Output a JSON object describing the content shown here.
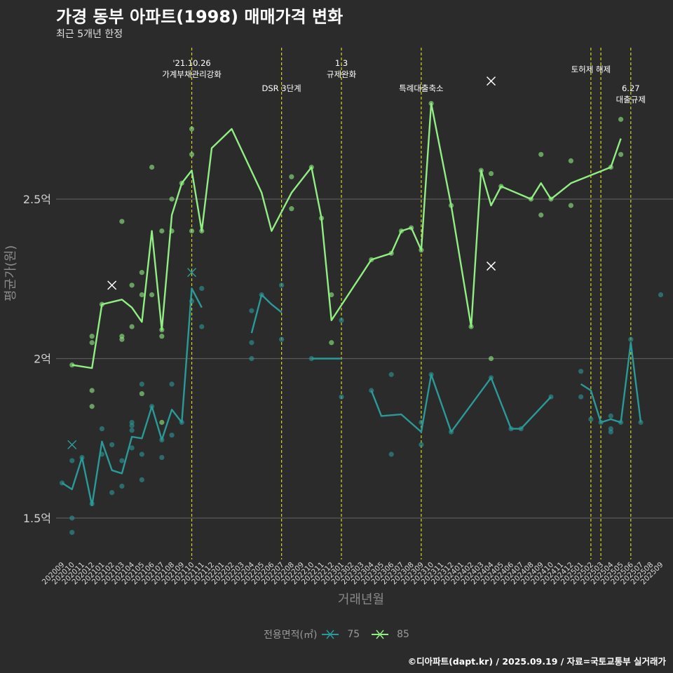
{
  "header": {
    "title": "가경 동부 아파트(1998) 매매가격 변화",
    "subtitle": "최근 5개년 한정"
  },
  "caption": "©디아파트(dapt.kr) / 2025.09.19 / 자료=국토교통부 실거래가",
  "legend": {
    "title": "전용면적(㎡)",
    "items": [
      "75",
      "85"
    ]
  },
  "colors": {
    "s75": "#2a9a98",
    "s85": "#90ee82",
    "event": "#d4d41e",
    "grid": "#5a5a5a",
    "bg": "#2b2b2b"
  },
  "chart_data": {
    "type": "line",
    "title": "가경 동부 아파트(1998) 매매가격 변화",
    "subtitle": "최근 5개년 한정",
    "xlabel": "거래년월",
    "ylabel": "평균가(원)",
    "ylim": [
      1.38,
      2.88
    ],
    "yticks": [
      {
        "value": 1.5,
        "label": "1.5억"
      },
      {
        "value": 2.0,
        "label": "2억"
      },
      {
        "value": 2.5,
        "label": "2.5억"
      }
    ],
    "months": [
      "202009",
      "202010",
      "202011",
      "202012",
      "202101",
      "202102",
      "202103",
      "202104",
      "202105",
      "202106",
      "202107",
      "202108",
      "202109",
      "202110",
      "202111",
      "202112",
      "202201",
      "202202",
      "202203",
      "202204",
      "202205",
      "202206",
      "202207",
      "202208",
      "202209",
      "202210",
      "202211",
      "202212",
      "202301",
      "202302",
      "202303",
      "202304",
      "202305",
      "202306",
      "202307",
      "202308",
      "202309",
      "202310",
      "202311",
      "202312",
      "202401",
      "202402",
      "202403",
      "202404",
      "202405",
      "202406",
      "202407",
      "202408",
      "202409",
      "202410",
      "202411",
      "202412",
      "202501",
      "202502",
      "202503",
      "202504",
      "202505",
      "202506",
      "202507",
      "202508",
      "202509"
    ],
    "series": [
      {
        "name": "75",
        "line_segments": [
          [
            [
              "202009",
              1.61
            ],
            [
              "202010",
              1.59
            ],
            [
              "202011",
              1.69
            ],
            [
              "202012",
              1.54
            ],
            [
              "202101",
              1.74
            ],
            [
              "202102",
              1.65
            ],
            [
              "202103",
              1.64
            ],
            [
              "202104",
              1.755
            ],
            [
              "202105",
              1.75
            ],
            [
              "202106",
              1.85
            ],
            [
              "202107",
              1.745
            ],
            [
              "202108",
              1.84
            ],
            [
              "202109",
              1.8
            ],
            [
              "202110",
              2.22
            ],
            [
              "202111",
              2.16
            ]
          ],
          [
            [
              "202204",
              2.08
            ],
            [
              "202205",
              2.2
            ],
            [
              "202206",
              2.17
            ],
            [
              "202207",
              2.145
            ]
          ],
          [
            [
              "202210",
              2.0
            ],
            [
              "202211",
              2.0
            ],
            [
              "202212",
              2.0
            ],
            [
              "202301",
              2.0
            ]
          ],
          [
            [
              "202304",
              1.9
            ],
            [
              "202305",
              1.82
            ],
            [
              "202307",
              1.825
            ],
            [
              "202309",
              1.77
            ],
            [
              "202310",
              1.95
            ],
            [
              "202312",
              1.77
            ],
            [
              "202404",
              1.94
            ],
            [
              "202406",
              1.78
            ],
            [
              "202407",
              1.78
            ],
            [
              "202410",
              1.88
            ]
          ],
          [
            [
              "202501",
              1.92
            ],
            [
              "202502",
              1.9
            ],
            [
              "202503",
              1.8
            ],
            [
              "202504",
              1.81
            ],
            [
              "202505",
              1.8
            ],
            [
              "202506",
              2.05
            ],
            [
              "202507",
              1.8
            ]
          ]
        ],
        "points": [
          [
            "202009",
            1.61
          ],
          [
            "202010",
            1.68
          ],
          [
            "202010",
            1.5
          ],
          [
            "202010",
            1.455
          ],
          [
            "202011",
            1.69
          ],
          [
            "202012",
            1.545
          ],
          [
            "202101",
            1.78
          ],
          [
            "202101",
            1.7
          ],
          [
            "202102",
            1.58
          ],
          [
            "202102",
            1.73
          ],
          [
            "202103",
            1.68
          ],
          [
            "202103",
            1.6
          ],
          [
            "202104",
            1.8
          ],
          [
            "202104",
            1.79
          ],
          [
            "202104",
            1.72
          ],
          [
            "202104",
            1.775
          ],
          [
            "202105",
            1.92
          ],
          [
            "202105",
            1.7
          ],
          [
            "202105",
            1.62
          ],
          [
            "202106",
            1.85
          ],
          [
            "202107",
            1.745
          ],
          [
            "202107",
            1.69
          ],
          [
            "202108",
            1.92
          ],
          [
            "202108",
            1.76
          ],
          [
            "202109",
            1.8
          ],
          [
            "202110",
            2.18
          ],
          [
            "202111",
            2.22
          ],
          [
            "202111",
            2.1
          ],
          [
            "202204",
            2.15
          ],
          [
            "202204",
            2.05
          ],
          [
            "202204",
            2.0
          ],
          [
            "202205",
            2.2
          ],
          [
            "202207",
            2.23
          ],
          [
            "202207",
            2.06
          ],
          [
            "202210",
            2.0
          ],
          [
            "202301",
            2.12
          ],
          [
            "202301",
            1.88
          ],
          [
            "202304",
            1.9
          ],
          [
            "202306",
            1.95
          ],
          [
            "202306",
            1.7
          ],
          [
            "202309",
            1.8
          ],
          [
            "202309",
            1.73
          ],
          [
            "202310",
            1.95
          ],
          [
            "202312",
            1.77
          ],
          [
            "202404",
            1.94
          ],
          [
            "202406",
            1.78
          ],
          [
            "202407",
            1.78
          ],
          [
            "202410",
            1.88
          ],
          [
            "202501",
            1.96
          ],
          [
            "202501",
            1.88
          ],
          [
            "202502",
            1.81
          ],
          [
            "202503",
            1.8
          ],
          [
            "202504",
            1.82
          ],
          [
            "202504",
            1.78
          ],
          [
            "202504",
            1.77
          ],
          [
            "202505",
            1.8
          ],
          [
            "202506",
            2.06
          ],
          [
            "202507",
            1.8
          ],
          [
            "202509",
            2.2
          ]
        ],
        "crosses": [
          [
            "202010",
            1.73
          ],
          [
            "202110",
            2.27
          ]
        ]
      },
      {
        "name": "85",
        "line_segments": [
          [
            [
              "202010",
              1.98
            ],
            [
              "202012",
              1.97
            ],
            [
              "202101",
              2.17
            ],
            [
              "202103",
              2.185
            ],
            [
              "202104",
              2.16
            ],
            [
              "202105",
              2.115
            ],
            [
              "202106",
              2.4
            ],
            [
              "202107",
              2.09
            ],
            [
              "202108",
              2.45
            ],
            [
              "202109",
              2.55
            ],
            [
              "202110",
              2.59
            ],
            [
              "202111",
              2.4
            ],
            [
              "202112",
              2.66
            ],
            [
              "202202",
              2.72
            ],
            [
              "202205",
              2.52
            ],
            [
              "202206",
              2.4
            ],
            [
              "202208",
              2.52
            ],
            [
              "202210",
              2.6
            ],
            [
              "202211",
              2.44
            ],
            [
              "202212",
              2.12
            ],
            [
              "202304",
              2.31
            ],
            [
              "202306",
              2.33
            ],
            [
              "202307",
              2.4
            ],
            [
              "202308",
              2.41
            ],
            [
              "202309",
              2.34
            ],
            [
              "202310",
              2.8
            ],
            [
              "202312",
              2.48
            ],
            [
              "202402",
              2.1
            ],
            [
              "202403",
              2.59
            ],
            [
              "202404",
              2.48
            ],
            [
              "202405",
              2.54
            ],
            [
              "202408",
              2.5
            ],
            [
              "202409",
              2.55
            ],
            [
              "202410",
              2.5
            ],
            [
              "202412",
              2.55
            ],
            [
              "202504",
              2.6
            ],
            [
              "202505",
              2.69
            ]
          ]
        ],
        "points": [
          [
            "202010",
            1.98
          ],
          [
            "202012",
            1.9
          ],
          [
            "202012",
            2.07
          ],
          [
            "202012",
            2.05
          ],
          [
            "202012",
            1.85
          ],
          [
            "202101",
            2.17
          ],
          [
            "202103",
            2.43
          ],
          [
            "202103",
            2.07
          ],
          [
            "202103",
            2.06
          ],
          [
            "202104",
            2.23
          ],
          [
            "202104",
            2.1
          ],
          [
            "202105",
            2.27
          ],
          [
            "202105",
            2.2
          ],
          [
            "202105",
            1.89
          ],
          [
            "202106",
            2.6
          ],
          [
            "202106",
            2.2
          ],
          [
            "202107",
            2.4
          ],
          [
            "202107",
            2.09
          ],
          [
            "202107",
            2.07
          ],
          [
            "202107",
            1.8
          ],
          [
            "202108",
            2.5
          ],
          [
            "202108",
            2.4
          ],
          [
            "202109",
            2.55
          ],
          [
            "202110",
            2.72
          ],
          [
            "202110",
            2.64
          ],
          [
            "202110",
            2.4
          ],
          [
            "202111",
            2.4
          ],
          [
            "202208",
            2.57
          ],
          [
            "202208",
            2.47
          ],
          [
            "202210",
            2.6
          ],
          [
            "202211",
            2.44
          ],
          [
            "202212",
            2.2
          ],
          [
            "202212",
            2.05
          ],
          [
            "202304",
            2.31
          ],
          [
            "202306",
            2.33
          ],
          [
            "202307",
            2.4
          ],
          [
            "202308",
            2.41
          ],
          [
            "202309",
            2.34
          ],
          [
            "202310",
            2.8
          ],
          [
            "202312",
            2.48
          ],
          [
            "202402",
            2.1
          ],
          [
            "202403",
            2.59
          ],
          [
            "202404",
            2.58
          ],
          [
            "202404",
            2.0
          ],
          [
            "202405",
            2.54
          ],
          [
            "202408",
            2.5
          ],
          [
            "202409",
            2.64
          ],
          [
            "202409",
            2.45
          ],
          [
            "202410",
            2.5
          ],
          [
            "202412",
            2.62
          ],
          [
            "202412",
            2.48
          ],
          [
            "202504",
            2.6
          ],
          [
            "202505",
            2.75
          ],
          [
            "202505",
            2.64
          ]
        ],
        "crosses": [
          [
            "202102",
            2.23
          ],
          [
            "202404",
            2.87
          ],
          [
            "202404",
            2.29
          ]
        ]
      }
    ],
    "events": [
      {
        "month": "202110",
        "lines": [
          "'21.10.26",
          "가계부채관리강화"
        ],
        "row": 0
      },
      {
        "month": "202207",
        "lines": [
          "DSR 3단계"
        ],
        "row": 1
      },
      {
        "month": "202301",
        "lines": [
          "1.3",
          "규제완화"
        ],
        "row": 0
      },
      {
        "month": "202309",
        "lines": [
          "특례대출축소"
        ],
        "row": 1
      },
      {
        "month": "202502",
        "lines": [
          "토허제 해제"
        ],
        "row": 0
      },
      {
        "month": "202503",
        "lines": [],
        "row": 0
      },
      {
        "month": "202506",
        "lines": [
          "6.27",
          "대출규제"
        ],
        "row": 1
      }
    ]
  }
}
